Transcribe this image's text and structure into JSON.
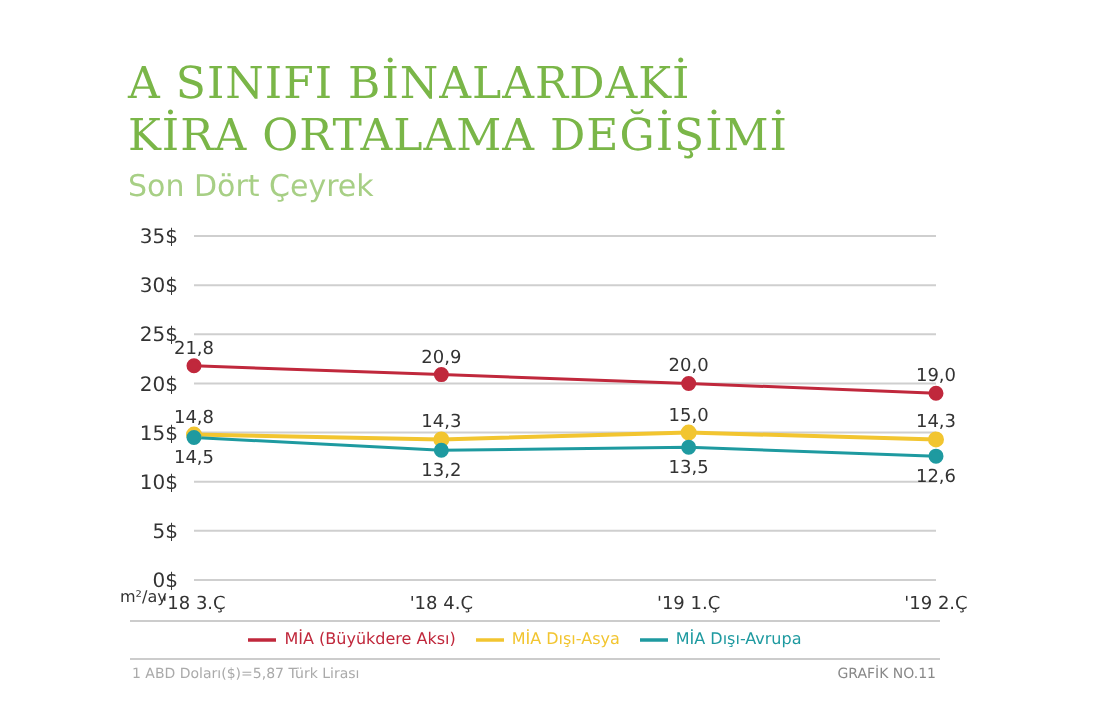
{
  "chart_data": {
    "type": "line",
    "title": "A SINIFI BİNALARDAKİ\nKİRA ORTALAMA DEĞİŞİMİ",
    "subtitle": "Son Dört Çeyrek",
    "ylabel": "m²/ay",
    "categories": [
      "'18 3.Ç",
      "'18 4.Ç",
      "'19 1.Ç",
      "'19 2.Ç"
    ],
    "series": [
      {
        "name": "MİA (Büyükdere Aksı)",
        "color": "#c0283c",
        "values": [
          21.8,
          20.9,
          20.0,
          19.0
        ],
        "value_labels": [
          "21,8",
          "20,9",
          "20,0",
          "19,0"
        ]
      },
      {
        "name": "MİA Dışı-Asya",
        "color": "#f2c530",
        "values": [
          14.8,
          14.3,
          15.0,
          14.3
        ],
        "value_labels": [
          "14,8",
          "14,3",
          "15,0",
          "14,3"
        ]
      },
      {
        "name": "MİA Dışı-Avrupa",
        "color": "#1e9aa0",
        "values": [
          14.5,
          13.2,
          13.5,
          12.6
        ],
        "value_labels": [
          "14,5",
          "13,2",
          "13,5",
          "12,6"
        ]
      }
    ],
    "ylim": [
      0,
      35
    ],
    "yticks": [
      {
        "value": 0,
        "label": "0$"
      },
      {
        "value": 5,
        "label": "5$"
      },
      {
        "value": 10,
        "label": "10$"
      },
      {
        "value": 15,
        "label": "15$"
      },
      {
        "value": 20,
        "label": "20$"
      },
      {
        "value": 25,
        "label": "25$"
      },
      {
        "value": 30,
        "label": "30$"
      },
      {
        "value": 35,
        "label": "35$"
      }
    ],
    "grid": "y",
    "legend": "bottom",
    "marker": "circle",
    "line_style": "solid",
    "annotations": [
      "1 ABD Doları($)=5,87 Türk Lirası",
      "GRAFİK NO.11"
    ]
  }
}
